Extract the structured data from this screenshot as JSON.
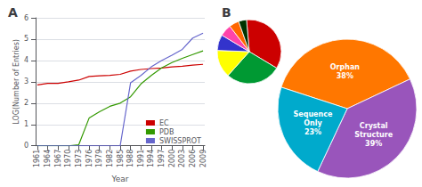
{
  "chart_data": [
    {
      "type": "line",
      "title": "A",
      "x": [
        1961,
        1964,
        1967,
        1970,
        1973,
        1976,
        1979,
        1982,
        1985,
        1988,
        1991,
        1994,
        1997,
        2000,
        2003,
        2006,
        2009
      ],
      "series": [
        {
          "name": "EC",
          "color": "#cc0000",
          "values": [
            2.85,
            2.93,
            2.93,
            3.0,
            3.08,
            3.25,
            3.28,
            3.3,
            3.35,
            3.5,
            3.58,
            3.62,
            3.65,
            3.7,
            3.73,
            3.78,
            3.82
          ]
        },
        {
          "name": "PDB",
          "color": "#339900",
          "values": [
            0,
            0,
            0,
            0,
            0.05,
            1.3,
            1.6,
            1.85,
            2.0,
            2.3,
            2.9,
            3.3,
            3.65,
            3.9,
            4.1,
            4.28,
            4.45
          ]
        },
        {
          "name": "SWISSPROT",
          "color": "#6666cc",
          "values": [
            0,
            0,
            0,
            0,
            0,
            0,
            0,
            0,
            0,
            2.95,
            3.3,
            3.7,
            4.0,
            4.25,
            4.52,
            5.05,
            5.28
          ]
        }
      ],
      "xlabel": "Year",
      "ylabel": "LOG(Number of Entries)",
      "xlim": [
        1960.5,
        2009.5
      ],
      "xticks": [
        1961,
        1964,
        1967,
        1970,
        1973,
        1976,
        1979,
        1982,
        1985,
        1988,
        1991,
        1994,
        1997,
        2000,
        2003,
        2006,
        2009
      ],
      "ylim": [
        0,
        6
      ],
      "yticks": [
        0,
        1,
        2,
        3,
        4,
        5,
        6
      ],
      "grid": true,
      "legend": "lower right"
    },
    {
      "type": "pie",
      "title": "B",
      "values": [
        35,
        28,
        14,
        8,
        6,
        5,
        4
      ],
      "colors": [
        "#cc0000",
        "#009933",
        "#ffff00",
        "#3333cc",
        "#ff44aa",
        "#ff6600",
        "#003300"
      ]
    },
    {
      "type": "pie",
      "categories": [
        "Orphan\n38%",
        "Crystal\nStructure\n39%",
        "Sequence\nOnly\n23%"
      ],
      "values": [
        38,
        39,
        23
      ],
      "colors": [
        "#ff7700",
        "#9955bb",
        "#00aacc"
      ],
      "data_labels": true
    }
  ]
}
